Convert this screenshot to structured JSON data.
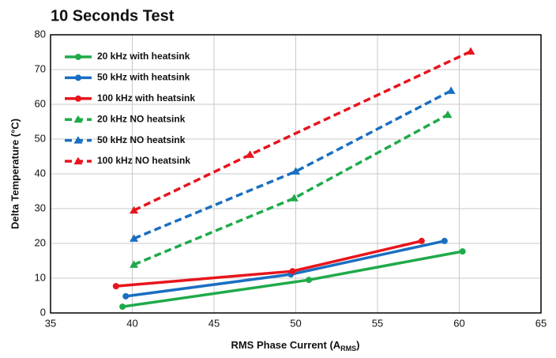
{
  "chart_data": {
    "type": "line",
    "title": "10 Seconds Test",
    "y_label": "Delta Temperature (°C)",
    "x_label": {
      "text": "RMS Phase Current (A",
      "sub": "RMS",
      "tail": ")"
    },
    "xlim": [
      35,
      65
    ],
    "xticks": [
      35,
      40,
      45,
      50,
      55,
      60,
      65
    ],
    "ylim": [
      0,
      80
    ],
    "yticks": [
      0,
      10,
      20,
      30,
      40,
      50,
      60,
      70,
      80
    ],
    "grid": true,
    "legend": "upper left",
    "series": [
      {
        "name": "20 kHz with heatsink",
        "color": "#1faa4a",
        "style": "solid",
        "marker": "circle",
        "x": [
          39.4,
          50.8,
          60.2
        ],
        "values": [
          1.8,
          9.5,
          17.7
        ]
      },
      {
        "name": "50 kHz with heatsink",
        "color": "#1a6fc1",
        "style": "solid",
        "marker": "circle",
        "x": [
          39.6,
          49.7,
          59.1
        ],
        "values": [
          4.8,
          11.1,
          20.7
        ]
      },
      {
        "name": "100 kHz with heatsink",
        "color": "#e8141c",
        "style": "solid",
        "marker": "circle",
        "x": [
          39.0,
          49.8,
          57.7
        ],
        "values": [
          7.7,
          12.0,
          20.7
        ]
      },
      {
        "name": "20 kHz NO heatsink",
        "color": "#1faa4a",
        "style": "dashed",
        "marker": "triangle",
        "x": [
          40.1,
          49.9,
          59.3
        ],
        "values": [
          13.9,
          33.0,
          57.0
        ]
      },
      {
        "name": "50 kHz NO heatsink",
        "color": "#1a6fc1",
        "style": "dashed",
        "marker": "triangle",
        "x": [
          40.1,
          50.0,
          59.5
        ],
        "values": [
          21.4,
          40.7,
          63.9
        ]
      },
      {
        "name": "100 kHz NO heatsink",
        "color": "#e8141c",
        "style": "dashed",
        "marker": "triangle",
        "x": [
          40.1,
          47.2,
          60.7
        ],
        "values": [
          29.5,
          45.5,
          75.2
        ]
      }
    ]
  }
}
